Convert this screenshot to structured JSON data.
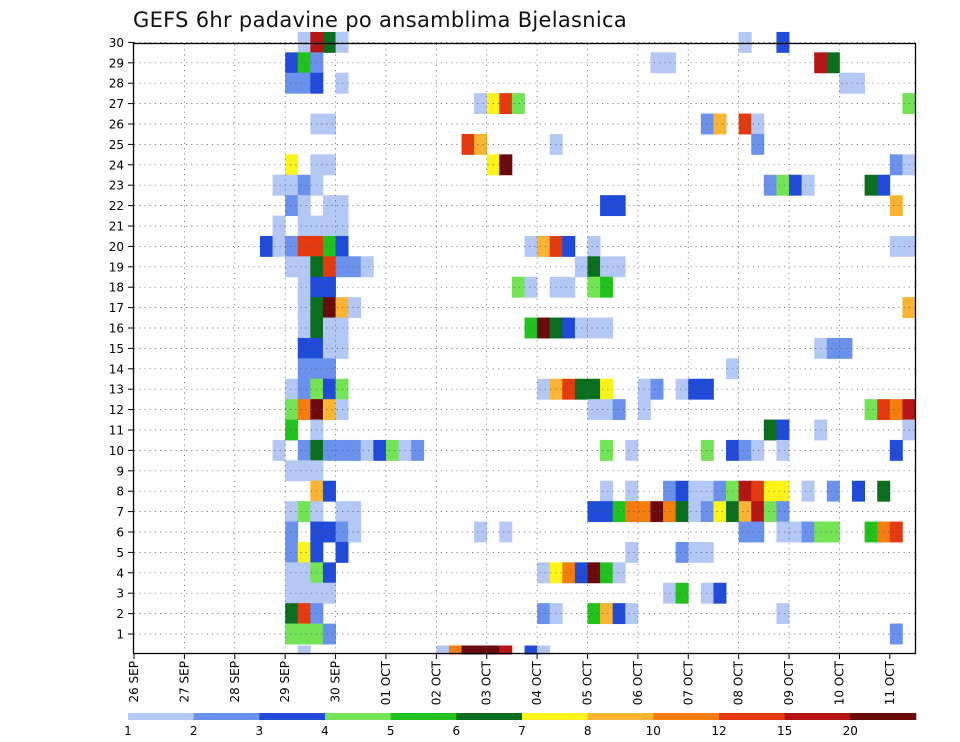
{
  "chart_data": {
    "type": "heatmap",
    "title": "GEFS 6hr padavine po ansamblima Bjelasnica",
    "y_members": [
      1,
      2,
      3,
      4,
      5,
      6,
      7,
      8,
      9,
      10,
      11,
      12,
      13,
      14,
      15,
      16,
      17,
      18,
      19,
      20,
      21,
      22,
      23,
      24,
      25,
      26,
      27,
      28,
      29,
      30
    ],
    "x_start": "26 SEP 00Z",
    "x_step_hours": 6,
    "x_steps": 62,
    "x_tick_labels": [
      "26 SEP",
      "27 SEP",
      "28 SEP",
      "29 SEP",
      "30 SEP",
      "01 OCT",
      "02 OCT",
      "03 OCT",
      "04 OCT",
      "05 OCT",
      "06 OCT",
      "07 OCT",
      "08 OCT",
      "09 OCT",
      "10 OCT",
      "11 OCT"
    ],
    "grid": true,
    "colorbar": {
      "placement": "bottom",
      "tick_labels": [
        "1",
        "2",
        "3",
        "4",
        "5",
        "6",
        "7",
        "8",
        "10",
        "12",
        "15",
        "20"
      ],
      "colors": [
        "#b4c8f5",
        "#6a91ec",
        "#1f4bd8",
        "#74e356",
        "#21c21d",
        "#0a6e1e",
        "#fbf31a",
        "#f9b434",
        "#f47d10",
        "#e33a10",
        "#b51515",
        "#6b0a0a"
      ]
    },
    "cells_note": "each cell = [member, 6h step index from x_start, color class 0-11 per colorbar.colors]",
    "cells": [
      [
        30,
        13,
        0
      ],
      [
        30,
        14,
        10
      ],
      [
        30,
        15,
        5
      ],
      [
        30,
        16,
        0
      ],
      [
        30,
        48,
        0
      ],
      [
        30,
        51,
        2
      ],
      [
        29,
        12,
        2
      ],
      [
        29,
        13,
        4
      ],
      [
        29,
        14,
        1
      ],
      [
        29,
        41,
        0
      ],
      [
        29,
        42,
        0
      ],
      [
        29,
        54,
        10
      ],
      [
        29,
        55,
        5
      ],
      [
        28,
        12,
        1
      ],
      [
        28,
        13,
        1
      ],
      [
        28,
        14,
        2
      ],
      [
        28,
        16,
        0
      ],
      [
        28,
        56,
        0
      ],
      [
        28,
        57,
        0
      ],
      [
        27,
        27,
        0
      ],
      [
        27,
        28,
        6
      ],
      [
        27,
        29,
        9
      ],
      [
        27,
        30,
        3
      ],
      [
        27,
        61,
        3
      ],
      [
        26,
        14,
        0
      ],
      [
        26,
        15,
        0
      ],
      [
        26,
        45,
        1
      ],
      [
        26,
        46,
        7
      ],
      [
        26,
        48,
        9
      ],
      [
        26,
        49,
        0
      ],
      [
        25,
        26,
        9
      ],
      [
        25,
        27,
        7
      ],
      [
        25,
        33,
        0
      ],
      [
        25,
        49,
        1
      ],
      [
        24,
        12,
        6
      ],
      [
        24,
        14,
        0
      ],
      [
        24,
        15,
        0
      ],
      [
        24,
        28,
        6
      ],
      [
        24,
        29,
        11
      ],
      [
        24,
        60,
        1
      ],
      [
        24,
        61,
        0
      ],
      [
        23,
        11,
        0
      ],
      [
        23,
        12,
        0
      ],
      [
        23,
        13,
        1
      ],
      [
        23,
        14,
        0
      ],
      [
        23,
        50,
        1
      ],
      [
        23,
        51,
        3
      ],
      [
        23,
        52,
        2
      ],
      [
        23,
        53,
        0
      ],
      [
        23,
        58,
        5
      ],
      [
        23,
        59,
        2
      ],
      [
        22,
        12,
        1
      ],
      [
        22,
        13,
        0
      ],
      [
        22,
        15,
        0
      ],
      [
        22,
        16,
        0
      ],
      [
        22,
        37,
        2
      ],
      [
        22,
        38,
        2
      ],
      [
        22,
        60,
        7
      ],
      [
        21,
        11,
        0
      ],
      [
        21,
        13,
        0
      ],
      [
        21,
        14,
        0
      ],
      [
        21,
        15,
        0
      ],
      [
        21,
        16,
        0
      ],
      [
        20,
        10,
        2
      ],
      [
        20,
        11,
        0
      ],
      [
        20,
        12,
        1
      ],
      [
        20,
        13,
        9
      ],
      [
        20,
        14,
        9
      ],
      [
        20,
        15,
        4
      ],
      [
        20,
        16,
        2
      ],
      [
        20,
        31,
        0
      ],
      [
        20,
        32,
        7
      ],
      [
        20,
        33,
        9
      ],
      [
        20,
        34,
        2
      ],
      [
        20,
        36,
        0
      ],
      [
        20,
        60,
        0
      ],
      [
        20,
        61,
        0
      ],
      [
        19,
        12,
        0
      ],
      [
        19,
        13,
        0
      ],
      [
        19,
        14,
        5
      ],
      [
        19,
        15,
        9
      ],
      [
        19,
        16,
        1
      ],
      [
        19,
        17,
        1
      ],
      [
        19,
        18,
        0
      ],
      [
        19,
        35,
        0
      ],
      [
        19,
        36,
        5
      ],
      [
        19,
        37,
        0
      ],
      [
        19,
        38,
        0
      ],
      [
        18,
        13,
        0
      ],
      [
        18,
        14,
        2
      ],
      [
        18,
        15,
        2
      ],
      [
        18,
        30,
        3
      ],
      [
        18,
        31,
        0
      ],
      [
        18,
        33,
        0
      ],
      [
        18,
        34,
        0
      ],
      [
        18,
        36,
        3
      ],
      [
        18,
        37,
        4
      ],
      [
        17,
        13,
        0
      ],
      [
        17,
        14,
        5
      ],
      [
        17,
        15,
        11
      ],
      [
        17,
        16,
        7
      ],
      [
        17,
        17,
        0
      ],
      [
        17,
        61,
        7
      ],
      [
        16,
        13,
        0
      ],
      [
        16,
        14,
        5
      ],
      [
        16,
        15,
        0
      ],
      [
        16,
        16,
        0
      ],
      [
        16,
        31,
        4
      ],
      [
        16,
        32,
        11
      ],
      [
        16,
        33,
        5
      ],
      [
        16,
        34,
        2
      ],
      [
        16,
        35,
        0
      ],
      [
        16,
        36,
        0
      ],
      [
        16,
        37,
        0
      ],
      [
        15,
        13,
        2
      ],
      [
        15,
        14,
        2
      ],
      [
        15,
        15,
        0
      ],
      [
        15,
        16,
        0
      ],
      [
        15,
        54,
        0
      ],
      [
        15,
        55,
        1
      ],
      [
        15,
        56,
        1
      ],
      [
        14,
        13,
        1
      ],
      [
        14,
        14,
        1
      ],
      [
        14,
        15,
        1
      ],
      [
        14,
        47,
        0
      ],
      [
        13,
        12,
        0
      ],
      [
        13,
        13,
        1
      ],
      [
        13,
        14,
        3
      ],
      [
        13,
        15,
        2
      ],
      [
        13,
        16,
        3
      ],
      [
        13,
        32,
        0
      ],
      [
        13,
        33,
        7
      ],
      [
        13,
        34,
        9
      ],
      [
        13,
        35,
        5
      ],
      [
        13,
        36,
        5
      ],
      [
        13,
        37,
        6
      ],
      [
        13,
        40,
        0
      ],
      [
        13,
        41,
        1
      ],
      [
        13,
        43,
        0
      ],
      [
        13,
        44,
        2
      ],
      [
        13,
        45,
        2
      ],
      [
        12,
        12,
        3
      ],
      [
        12,
        13,
        8
      ],
      [
        12,
        14,
        11
      ],
      [
        12,
        15,
        7
      ],
      [
        12,
        16,
        0
      ],
      [
        12,
        36,
        0
      ],
      [
        12,
        37,
        0
      ],
      [
        12,
        38,
        1
      ],
      [
        12,
        40,
        0
      ],
      [
        12,
        58,
        3
      ],
      [
        12,
        59,
        9
      ],
      [
        12,
        60,
        8
      ],
      [
        12,
        61,
        10
      ],
      [
        11,
        12,
        4
      ],
      [
        11,
        14,
        0
      ],
      [
        11,
        50,
        5
      ],
      [
        11,
        51,
        2
      ],
      [
        11,
        54,
        0
      ],
      [
        11,
        61,
        0
      ],
      [
        10,
        11,
        0
      ],
      [
        10,
        13,
        1
      ],
      [
        10,
        14,
        5
      ],
      [
        10,
        15,
        1
      ],
      [
        10,
        16,
        1
      ],
      [
        10,
        17,
        1
      ],
      [
        10,
        18,
        0
      ],
      [
        10,
        19,
        2
      ],
      [
        10,
        20,
        3
      ],
      [
        10,
        21,
        0
      ],
      [
        10,
        22,
        1
      ],
      [
        10,
        37,
        3
      ],
      [
        10,
        39,
        0
      ],
      [
        10,
        45,
        3
      ],
      [
        10,
        47,
        2
      ],
      [
        10,
        48,
        1
      ],
      [
        10,
        49,
        0
      ],
      [
        10,
        51,
        0
      ],
      [
        10,
        60,
        2
      ],
      [
        9,
        12,
        0
      ],
      [
        9,
        13,
        0
      ],
      [
        9,
        14,
        0
      ],
      [
        8,
        14,
        7
      ],
      [
        8,
        15,
        2
      ],
      [
        8,
        37,
        0
      ],
      [
        8,
        39,
        0
      ],
      [
        8,
        42,
        1
      ],
      [
        8,
        43,
        2
      ],
      [
        8,
        44,
        0
      ],
      [
        8,
        45,
        0
      ],
      [
        8,
        46,
        1
      ],
      [
        8,
        47,
        3
      ],
      [
        8,
        48,
        10
      ],
      [
        8,
        49,
        9
      ],
      [
        8,
        50,
        6
      ],
      [
        8,
        51,
        6
      ],
      [
        8,
        53,
        0
      ],
      [
        8,
        55,
        1
      ],
      [
        8,
        57,
        2
      ],
      [
        8,
        59,
        5
      ],
      [
        7,
        12,
        0
      ],
      [
        7,
        13,
        3
      ],
      [
        7,
        14,
        0
      ],
      [
        7,
        16,
        0
      ],
      [
        7,
        17,
        0
      ],
      [
        7,
        36,
        2
      ],
      [
        7,
        37,
        2
      ],
      [
        7,
        38,
        4
      ],
      [
        7,
        39,
        8
      ],
      [
        7,
        40,
        8
      ],
      [
        7,
        41,
        11
      ],
      [
        7,
        42,
        8
      ],
      [
        7,
        43,
        5
      ],
      [
        7,
        44,
        0
      ],
      [
        7,
        45,
        1
      ],
      [
        7,
        46,
        6
      ],
      [
        7,
        47,
        5
      ],
      [
        7,
        48,
        7
      ],
      [
        7,
        49,
        10
      ],
      [
        7,
        50,
        3
      ],
      [
        7,
        51,
        1
      ],
      [
        6,
        12,
        1
      ],
      [
        6,
        14,
        2
      ],
      [
        6,
        15,
        2
      ],
      [
        6,
        16,
        1
      ],
      [
        6,
        17,
        0
      ],
      [
        6,
        27,
        0
      ],
      [
        6,
        29,
        0
      ],
      [
        6,
        48,
        1
      ],
      [
        6,
        49,
        1
      ],
      [
        6,
        51,
        0
      ],
      [
        6,
        52,
        0
      ],
      [
        6,
        53,
        1
      ],
      [
        6,
        54,
        3
      ],
      [
        6,
        55,
        3
      ],
      [
        6,
        58,
        4
      ],
      [
        6,
        59,
        8
      ],
      [
        6,
        60,
        9
      ],
      [
        5,
        12,
        1
      ],
      [
        5,
        13,
        6
      ],
      [
        5,
        14,
        2
      ],
      [
        5,
        16,
        2
      ],
      [
        5,
        39,
        0
      ],
      [
        5,
        43,
        1
      ],
      [
        5,
        44,
        0
      ],
      [
        5,
        45,
        0
      ],
      [
        4,
        12,
        0
      ],
      [
        4,
        13,
        0
      ],
      [
        4,
        14,
        3
      ],
      [
        4,
        15,
        2
      ],
      [
        4,
        32,
        0
      ],
      [
        4,
        33,
        6
      ],
      [
        4,
        34,
        8
      ],
      [
        4,
        35,
        2
      ],
      [
        4,
        36,
        11
      ],
      [
        4,
        37,
        4
      ],
      [
        4,
        38,
        0
      ],
      [
        3,
        12,
        0
      ],
      [
        3,
        13,
        0
      ],
      [
        3,
        14,
        0
      ],
      [
        3,
        15,
        0
      ],
      [
        3,
        42,
        0
      ],
      [
        3,
        43,
        4
      ],
      [
        3,
        45,
        0
      ],
      [
        3,
        46,
        2
      ],
      [
        2,
        12,
        5
      ],
      [
        2,
        13,
        9
      ],
      [
        2,
        14,
        1
      ],
      [
        2,
        32,
        1
      ],
      [
        2,
        33,
        0
      ],
      [
        2,
        36,
        4
      ],
      [
        2,
        37,
        7
      ],
      [
        2,
        38,
        2
      ],
      [
        2,
        39,
        0
      ],
      [
        2,
        51,
        0
      ],
      [
        1,
        12,
        3
      ],
      [
        1,
        13,
        3
      ],
      [
        1,
        14,
        3
      ],
      [
        1,
        15,
        1
      ],
      [
        1,
        60,
        1
      ],
      [
        0,
        13,
        0
      ],
      [
        0,
        24,
        0
      ],
      [
        0,
        25,
        8
      ],
      [
        0,
        26,
        11
      ],
      [
        0,
        27,
        11
      ],
      [
        0,
        28,
        11
      ],
      [
        0,
        29,
        10
      ],
      [
        0,
        31,
        2
      ],
      [
        0,
        32,
        0
      ]
    ]
  }
}
